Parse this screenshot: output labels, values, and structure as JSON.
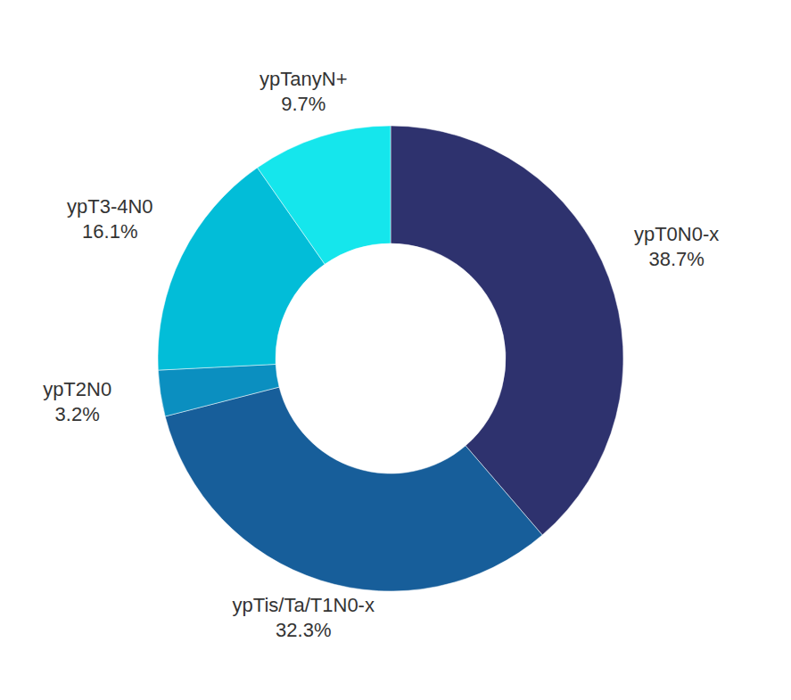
{
  "chart_data": {
    "type": "pie",
    "categories": [
      "ypT0N0-x",
      "ypTis/Ta/T1N0-x",
      "ypT2N0",
      "ypT3-4N0",
      "ypTanyN+"
    ],
    "values": [
      38.7,
      32.3,
      3.2,
      16.1,
      9.7
    ],
    "value_labels": [
      "38.7%",
      "32.3%",
      "3.2%",
      "16.1%",
      "9.7%"
    ],
    "colors": [
      "#2e326e",
      "#175e9a",
      "#0b8fc0",
      "#02bdd8",
      "#15e6ec"
    ],
    "data_labels": true
  }
}
